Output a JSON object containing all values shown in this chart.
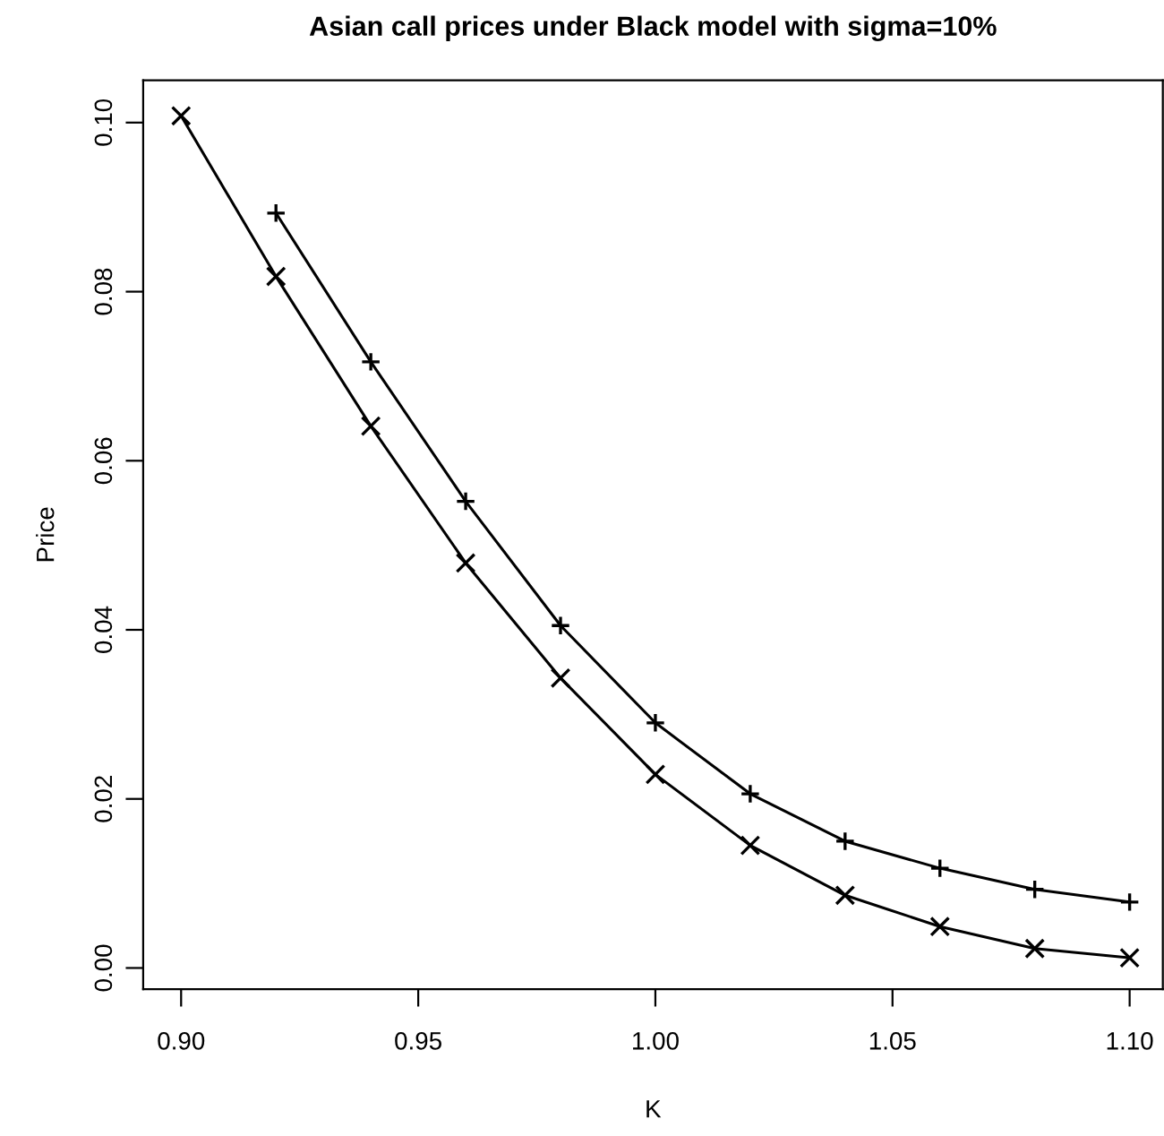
{
  "chart_data": {
    "type": "line",
    "title": "Asian call prices under Black model with sigma=10%",
    "xlabel": "K",
    "ylabel": "Price",
    "x": [
      0.9,
      0.92,
      0.94,
      0.96,
      0.98,
      1.0,
      1.02,
      1.04,
      1.06,
      1.08,
      1.1
    ],
    "series": [
      {
        "color": "#000000",
        "marker": "plus",
        "values": [
          null,
          0.0893,
          0.0717,
          0.0552,
          0.0405,
          0.029,
          0.0206,
          0.015,
          0.0118,
          0.0093,
          0.0078
        ]
      },
      {
        "color": "#000000",
        "marker": "cross",
        "values": [
          0.1008,
          0.0818,
          0.0641,
          0.0479,
          0.0343,
          0.0229,
          0.0145,
          0.0086,
          0.0049,
          0.0023,
          0.0012
        ]
      }
    ],
    "xlim": [
      0.892,
      1.107
    ],
    "ylim": [
      -0.0025,
      0.105
    ],
    "xticks": [
      {
        "value": 0.9,
        "label": "0.90"
      },
      {
        "value": 0.95,
        "label": "0.95"
      },
      {
        "value": 1.0,
        "label": "1.00"
      },
      {
        "value": 1.05,
        "label": "1.05"
      },
      {
        "value": 1.1,
        "label": "1.10"
      }
    ],
    "yticks": [
      {
        "value": 0.0,
        "label": "0.00"
      },
      {
        "value": 0.02,
        "label": "0.02"
      },
      {
        "value": 0.04,
        "label": "0.04"
      },
      {
        "value": 0.06,
        "label": "0.06"
      },
      {
        "value": 0.08,
        "label": "0.08"
      },
      {
        "value": 0.1,
        "label": "0.10"
      }
    ],
    "grid": false,
    "legend": false,
    "line_style": "solid"
  }
}
